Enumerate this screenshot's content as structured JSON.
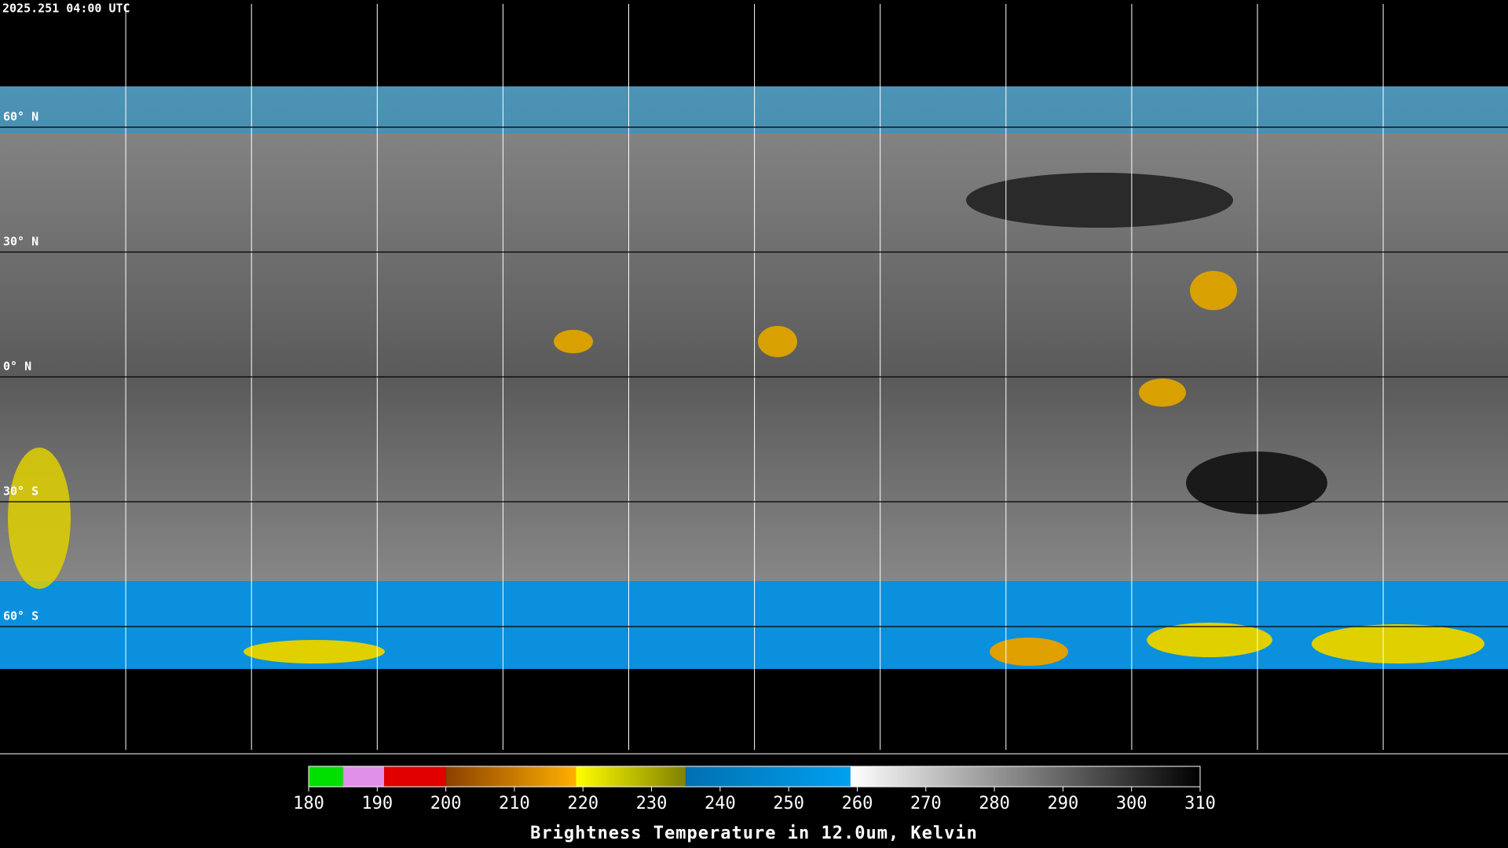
{
  "timestamp": "2025.251 04:00 UTC",
  "latitude_lines": [
    {
      "value": 60,
      "label": "60° N"
    },
    {
      "value": 30,
      "label": "30° N"
    },
    {
      "value": 0,
      "label": "0° N"
    },
    {
      "value": -30,
      "label": "30° S"
    },
    {
      "value": -60,
      "label": "60° S"
    }
  ],
  "colorbar": {
    "title": "Brightness Temperature in 12.0um, Kelvin",
    "range": [
      180,
      310
    ],
    "ticks": [
      180,
      190,
      200,
      210,
      220,
      230,
      240,
      250,
      260,
      270,
      280,
      290,
      300,
      310
    ],
    "segments": [
      {
        "from": 180,
        "to": 185,
        "colors": [
          "#00e000",
          "#00e000"
        ]
      },
      {
        "from": 185,
        "to": 191,
        "colors": [
          "#e090e8",
          "#e090e8"
        ]
      },
      {
        "from": 191,
        "to": 200,
        "colors": [
          "#e00000",
          "#e00000"
        ]
      },
      {
        "from": 200,
        "to": 219,
        "colors": [
          "#8a4000",
          "#ffb000"
        ]
      },
      {
        "from": 219,
        "to": 235,
        "colors": [
          "#ffff00",
          "#808000"
        ]
      },
      {
        "from": 235,
        "to": 259,
        "colors": [
          "#0070b0",
          "#00a0f0"
        ]
      },
      {
        "from": 259,
        "to": 310,
        "colors": [
          "#ffffff",
          "#000000"
        ]
      }
    ]
  }
}
